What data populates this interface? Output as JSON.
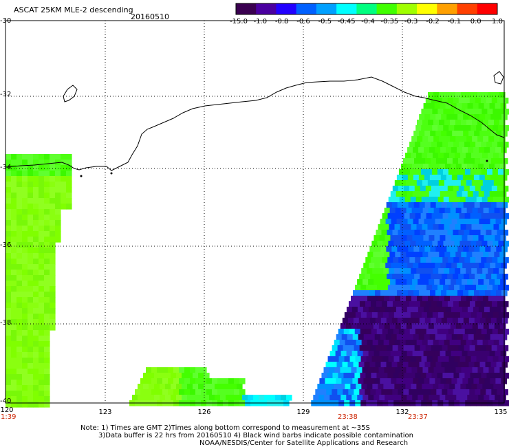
{
  "header": {
    "title": "ASCAT 25KM MLE-2 descending",
    "date": "20160510"
  },
  "colorbar": {
    "labels": [
      "-15.0",
      "-1.0",
      "-0.8",
      "-0.6",
      "-0.5",
      "-0.45",
      "-0.4",
      "-0.35",
      "-0.3",
      "-0.2",
      "-0.1",
      "0.0",
      "1.0"
    ],
    "colors": [
      "#3a0050",
      "#4a00a0",
      "#2200ff",
      "#0060ff",
      "#00a0ff",
      "#00ffff",
      "#00ff80",
      "#40ff00",
      "#a0ff00",
      "#ffff00",
      "#ffa000",
      "#ff4000",
      "#ff0000"
    ]
  },
  "axes": {
    "lat_labels": [
      "-30",
      "-32",
      "-34",
      "-36",
      "-38",
      "-40"
    ],
    "lon_labels": [
      "120",
      "123",
      "126",
      "129",
      "132",
      "135"
    ]
  },
  "times": {
    "left": "1:39",
    "mid": "23:38",
    "right": "23:37"
  },
  "footer": {
    "line1": "Note: 1) Times are GMT 2)Times along bottom correspond to measurement at ~35S",
    "line2": "3)Data buffer is 22 hrs from 20160510 4) Black wind barbs indicate possible contamination",
    "line3": "NOAA/NESDIS/Center for Satellite Applications and Research"
  }
}
